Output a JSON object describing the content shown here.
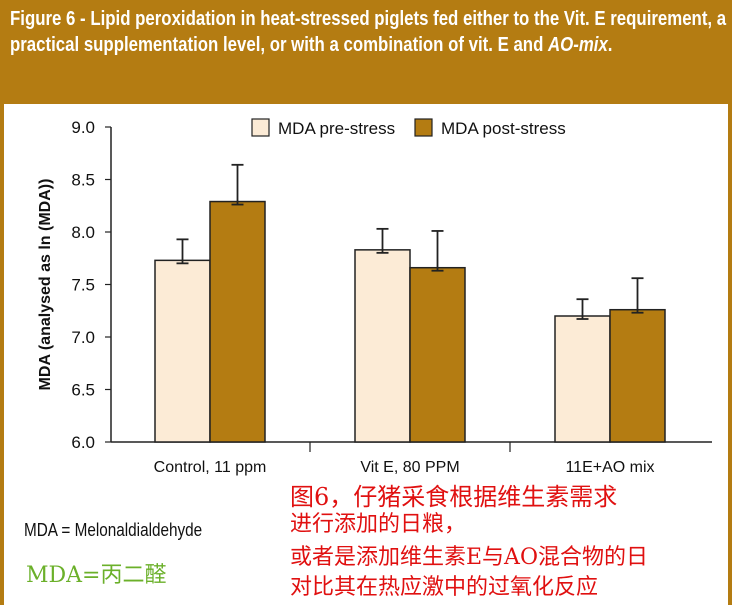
{
  "title": {
    "main": "Figure 6 - Lipid peroxidation in heat-stressed piglets fed either to the Vit. E requirement, a practical supplementation level, or with a combination of vit. E and ",
    "italic": "AO-mix",
    "end": "."
  },
  "chart_data": {
    "type": "bar",
    "title": "",
    "xlabel": "",
    "ylabel": "MDA (analysed as ln (MDA))",
    "ylim": [
      6.0,
      9.0
    ],
    "yticks": [
      "6.0",
      "6.5",
      "7.0",
      "7.5",
      "8.0",
      "8.5",
      "9.0"
    ],
    "categories": [
      "Control, 11 ppm",
      "Vit E, 80 PPM",
      "11E+AO mix"
    ],
    "legend_position": "top",
    "series": [
      {
        "name": "MDA pre-stress",
        "color": "#fcebd6",
        "values": [
          7.73,
          7.83,
          7.2
        ],
        "error_upper": [
          7.93,
          8.03,
          7.36
        ]
      },
      {
        "name": "MDA post-stress",
        "color": "#b47c12",
        "values": [
          8.29,
          7.66,
          7.26
        ],
        "error_upper": [
          8.64,
          8.01,
          7.56
        ]
      }
    ]
  },
  "footnote": "MDA = Melonaldialdehyde",
  "footnote_cn": "MDA=丙二醛",
  "annotation_cn": [
    "图6，仔猪采食根据维生素需求",
    "进行添加的日粮，",
    "或者是添加维生素E与AO混合物的日",
    "对比其在热应激中的过氧化反应"
  ]
}
